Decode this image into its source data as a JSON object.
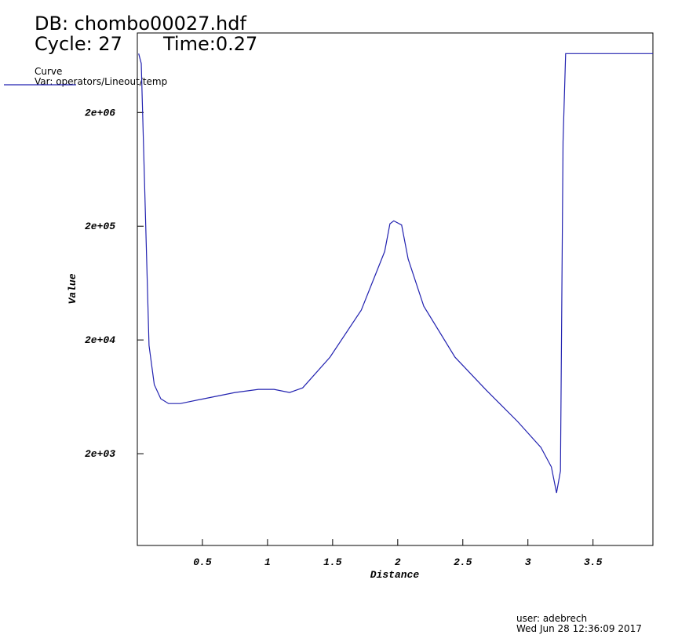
{
  "chart_data": {
    "type": "line",
    "db": "DB: chombo00027.hdf",
    "cycle": "Cycle: 27",
    "time": "Time:0.27",
    "legend_title": "Curve",
    "xlabel": "Distance",
    "ylabel": "Value",
    "user": "user: adebrech",
    "date": "Wed Jun 28 12:36:09 2017",
    "log_y": true,
    "xlim": [
      0,
      3.96
    ],
    "ylim": [
      312,
      10000000
    ],
    "xticks": [
      0.5,
      1.0,
      1.5,
      2.0,
      2.5,
      3.0,
      3.5
    ],
    "yticks": [
      {
        "value": 2000,
        "label": "2e+03"
      },
      {
        "value": 20000,
        "label": "2e+04"
      },
      {
        "value": 200000,
        "label": "2e+05"
      },
      {
        "value": 2000000,
        "label": "2e+06"
      }
    ],
    "series": [
      {
        "name": "Var: operators/Lineout/temp",
        "color": "#2222b0",
        "x": [
          0.01,
          0.03,
          0.05,
          0.09,
          0.13,
          0.18,
          0.24,
          0.33,
          0.51,
          0.75,
          0.93,
          1.05,
          1.17,
          1.27,
          1.48,
          1.72,
          1.9,
          1.94,
          1.97,
          2.03,
          2.08,
          2.2,
          2.44,
          2.68,
          2.92,
          3.1,
          3.18,
          3.22,
          3.25,
          3.27,
          3.29,
          3.96
        ],
        "values": [
          6580000,
          5400000,
          810000,
          17900,
          8090,
          6080,
          5520,
          5520,
          6080,
          6900,
          7360,
          7360,
          6900,
          7580,
          14100,
          36600,
          120000,
          210000,
          223000,
          205000,
          103000,
          39600,
          14100,
          7240,
          3840,
          2270,
          1530,
          904,
          1410,
          1110000,
          6580000,
          6580000
        ]
      }
    ]
  }
}
